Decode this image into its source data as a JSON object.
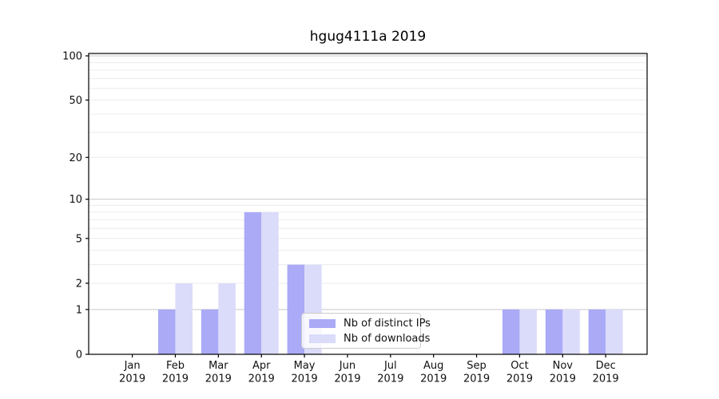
{
  "chart_data": {
    "type": "bar",
    "title": "hgug4111a 2019",
    "categories": [
      "Jan",
      "Feb",
      "Mar",
      "Apr",
      "May",
      "Jun",
      "Jul",
      "Aug",
      "Sep",
      "Oct",
      "Nov",
      "Dec"
    ],
    "year_label": "2019",
    "series": [
      {
        "name": "Nb of distinct IPs",
        "color": "#aaaaf7",
        "values": [
          0,
          1,
          1,
          8,
          3,
          0,
          0,
          0,
          0,
          1,
          1,
          1
        ]
      },
      {
        "name": "Nb of downloads",
        "color": "#dbdbfa",
        "values": [
          0,
          2,
          2,
          8,
          3,
          0,
          0,
          0,
          0,
          1,
          1,
          1
        ]
      }
    ],
    "xlabel": "",
    "ylabel": "",
    "yscale": "log1p",
    "ylim": [
      0,
      104
    ],
    "yticks": [
      0,
      1,
      2,
      5,
      10,
      20,
      50,
      100
    ],
    "major_gridlines": [
      1,
      10,
      100
    ],
    "minor_gridlines": [
      2,
      3,
      4,
      5,
      6,
      7,
      8,
      9,
      20,
      30,
      40,
      50,
      60,
      70,
      80,
      90
    ],
    "grid": true,
    "legend_position": "lower center",
    "colors": {
      "major_grid": "#c8c8c8",
      "minor_grid": "#ececec",
      "spine": "#000000",
      "tick_text": "#111111"
    }
  }
}
